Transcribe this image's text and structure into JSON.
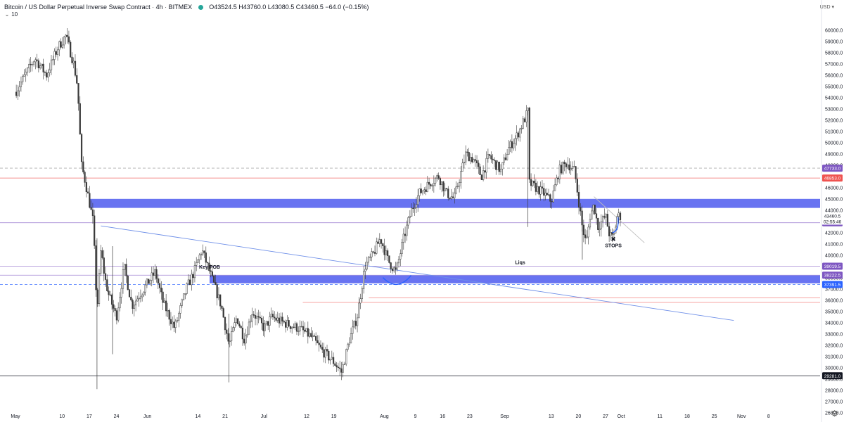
{
  "header": {
    "symbol": "Bitcoin / US Dollar Perpetual Inverse Swap Contract",
    "interval": "4h",
    "exchange": "BITMEX",
    "status_color": "#26a69a",
    "ohlc": "O43524.5  H43760.0  L43080.5  C43460.5  −64.0 (−0.15%)",
    "indicator_value": "10"
  },
  "price_scale": {
    "currency": "USD",
    "settings_icon": "gear-icon"
  },
  "colors": {
    "candle": "#3a3a3a",
    "zone": "#5b67f0",
    "trendline": "#6e8fe8",
    "red_level": "#ef5350",
    "purple_level": "#9575cd",
    "curve": "#2962ff",
    "axis_text": "#131722"
  },
  "chart_data": {
    "type": "candlestick",
    "title": "Bitcoin / US Dollar Perpetual Inverse Swap Contract",
    "interval": "4h",
    "ylim": [
      25800,
      60800
    ],
    "y_ticks": [
      26000,
      27000,
      28000,
      29000,
      30000,
      31000,
      32000,
      33000,
      34000,
      35000,
      36000,
      37000,
      38000,
      39000,
      40000,
      41000,
      42000,
      43000,
      44000,
      45000,
      46000,
      47000,
      48000,
      49000,
      50000,
      51000,
      52000,
      53000,
      54000,
      55000,
      56000,
      57000,
      58000,
      59000,
      60000
    ],
    "x_ticks": [
      {
        "label": "May",
        "date": "2021-04-28"
      },
      {
        "label": "10",
        "date": "2021-05-10"
      },
      {
        "label": "17",
        "date": "2021-05-17"
      },
      {
        "label": "24",
        "date": "2021-05-24"
      },
      {
        "label": "Jun",
        "date": "2021-06-01"
      },
      {
        "label": "14",
        "date": "2021-06-14"
      },
      {
        "label": "21",
        "date": "2021-06-21"
      },
      {
        "label": "Jul",
        "date": "2021-07-01"
      },
      {
        "label": "12",
        "date": "2021-07-12"
      },
      {
        "label": "19",
        "date": "2021-07-19"
      },
      {
        "label": "Aug",
        "date": "2021-08-01"
      },
      {
        "label": "9",
        "date": "2021-08-09"
      },
      {
        "label": "16",
        "date": "2021-08-16"
      },
      {
        "label": "23",
        "date": "2021-08-23"
      },
      {
        "label": "Sep",
        "date": "2021-09-01"
      },
      {
        "label": "13",
        "date": "2021-09-13"
      },
      {
        "label": "20",
        "date": "2021-09-20"
      },
      {
        "label": "27",
        "date": "2021-09-27"
      },
      {
        "label": "Oct",
        "date": "2021-10-01"
      },
      {
        "label": "11",
        "date": "2021-10-11"
      },
      {
        "label": "18",
        "date": "2021-10-18"
      },
      {
        "label": "25",
        "date": "2021-10-25"
      },
      {
        "label": "Nov",
        "date": "2021-11-01"
      },
      {
        "label": "8",
        "date": "2021-11-08"
      }
    ],
    "price_path": [
      [
        "2021-04-28",
        54500
      ],
      [
        "2021-05-03",
        57500
      ],
      [
        "2021-05-06",
        56000
      ],
      [
        "2021-05-09",
        58500
      ],
      [
        "2021-05-11",
        59500
      ],
      [
        "2021-05-13",
        57000
      ],
      [
        "2021-05-14",
        55000
      ],
      [
        "2021-05-15",
        48000
      ],
      [
        "2021-05-16",
        46500
      ],
      [
        "2021-05-18",
        43000
      ],
      [
        "2021-05-19",
        35000
      ],
      [
        "2021-05-20",
        40500
      ],
      [
        "2021-05-21",
        38000
      ],
      [
        "2021-05-22",
        36500
      ],
      [
        "2021-05-24",
        34500
      ],
      [
        "2021-05-26",
        39000
      ],
      [
        "2021-05-28",
        35500
      ],
      [
        "2021-05-31",
        37000
      ],
      [
        "2021-06-03",
        38500
      ],
      [
        "2021-06-05",
        35800
      ],
      [
        "2021-06-08",
        33500
      ],
      [
        "2021-06-11",
        37000
      ],
      [
        "2021-06-13",
        38500
      ],
      [
        "2021-06-15",
        40500
      ],
      [
        "2021-06-17",
        38500
      ],
      [
        "2021-06-20",
        35500
      ],
      [
        "2021-06-22",
        32000
      ],
      [
        "2021-06-24",
        34500
      ],
      [
        "2021-06-26",
        32500
      ],
      [
        "2021-06-28",
        35000
      ],
      [
        "2021-07-01",
        33500
      ],
      [
        "2021-07-03",
        34500
      ],
      [
        "2021-07-06",
        34000
      ],
      [
        "2021-07-10",
        33500
      ],
      [
        "2021-07-13",
        32800
      ],
      [
        "2021-07-16",
        31500
      ],
      [
        "2021-07-19",
        30500
      ],
      [
        "2021-07-21",
        29600
      ],
      [
        "2021-07-23",
        32500
      ],
      [
        "2021-07-25",
        34500
      ],
      [
        "2021-07-27",
        39000
      ],
      [
        "2021-07-29",
        40000
      ],
      [
        "2021-07-31",
        41500
      ],
      [
        "2021-08-02",
        39500
      ],
      [
        "2021-08-04",
        38500
      ],
      [
        "2021-08-06",
        41500
      ],
      [
        "2021-08-08",
        44000
      ],
      [
        "2021-08-10",
        45500
      ],
      [
        "2021-08-13",
        46500
      ],
      [
        "2021-08-15",
        47000
      ],
      [
        "2021-08-17",
        45500
      ],
      [
        "2021-08-19",
        45000
      ],
      [
        "2021-08-22",
        49000
      ],
      [
        "2021-08-24",
        48500
      ],
      [
        "2021-08-26",
        47000
      ],
      [
        "2021-08-28",
        48800
      ],
      [
        "2021-08-31",
        47500
      ],
      [
        "2021-09-02",
        49500
      ],
      [
        "2021-09-04",
        50500
      ],
      [
        "2021-09-06",
        52000
      ],
      [
        "2021-09-07",
        52800
      ],
      [
        "2021-09-07",
        46500
      ],
      [
        "2021-09-09",
        46000
      ],
      [
        "2021-09-11",
        45500
      ],
      [
        "2021-09-13",
        44800
      ],
      [
        "2021-09-15",
        47500
      ],
      [
        "2021-09-17",
        48200
      ],
      [
        "2021-09-19",
        47500
      ],
      [
        "2021-09-21",
        42500
      ],
      [
        "2021-09-22",
        41000
      ],
      [
        "2021-09-23",
        43500
      ],
      [
        "2021-09-24",
        44500
      ],
      [
        "2021-09-25",
        42500
      ],
      [
        "2021-09-27",
        43500
      ],
      [
        "2021-09-28",
        41800
      ],
      [
        "2021-09-29",
        41500
      ],
      [
        "2021-09-30",
        43500
      ],
      [
        "2021-10-01",
        43460
      ]
    ],
    "candle_count": 380,
    "series": [],
    "horizontal_levels": [
      {
        "price": 47733.0,
        "label": "47733.0",
        "style": "dashed",
        "color": "#9e9e9e",
        "badge": "#7e57c2"
      },
      {
        "price": 46853.0,
        "label": "46853.0",
        "style": "solid",
        "color": "#ef5350",
        "badge": "#ef5350"
      },
      {
        "price": 42881.5,
        "label": "42881.5",
        "style": "solid",
        "color": "#9575cd",
        "badge": "#7e57c2"
      },
      {
        "price": 39019.5,
        "label": "39019.5",
        "style": "solid",
        "color": "#9575cd",
        "badge": "#7e57c2"
      },
      {
        "price": 38222.5,
        "label": "38222.5",
        "style": "solid",
        "color": "#9575cd",
        "badge": "#7e57c2"
      },
      {
        "price": 37391.5,
        "label": "37391.5",
        "style": "dashed",
        "color": "#2962ff",
        "badge": "#2962ff"
      },
      {
        "price": 29281.0,
        "label": "29281.0",
        "style": "solid",
        "color": "#131722",
        "badge": "#131722"
      }
    ],
    "partial_levels": [
      {
        "price": 36200,
        "from": "2021-07-28",
        "color": "#ef5350"
      },
      {
        "price": 35800,
        "from": "2021-07-11",
        "color": "#ef5350"
      }
    ],
    "zones": [
      {
        "top": 45000,
        "bottom": 44200,
        "from": "2021-05-17"
      },
      {
        "top": 38200,
        "bottom": 37500,
        "from": "2021-06-17"
      }
    ],
    "trendlines": [
      {
        "from": [
          "2021-05-20",
          42600
        ],
        "to": [
          "2021-10-30",
          34200
        ],
        "color": "#6e8fe8"
      },
      {
        "from": [
          "2021-09-24",
          45200
        ],
        "to": [
          "2021-10-07",
          41100
        ],
        "color": "#bdbdbd"
      }
    ],
    "curves": [
      {
        "date": "2021-08-05",
        "price": 37700
      },
      {
        "date": "2021-09-30",
        "price": 42500
      }
    ],
    "annotations": [
      {
        "text": "Key POB",
        "date": "2021-06-17",
        "price": 38800
      },
      {
        "text": "Liqs",
        "date": "2021-09-05",
        "price": 39200
      },
      {
        "text": "STOPS",
        "date": "2021-09-29",
        "price": 40700
      }
    ],
    "stops_marker": {
      "symbol": "✖",
      "date": "2021-09-29",
      "price": 41250
    },
    "last_price": {
      "price": 43460.5,
      "label": "43460.5",
      "countdown": "02:55:46"
    },
    "grid": false
  }
}
